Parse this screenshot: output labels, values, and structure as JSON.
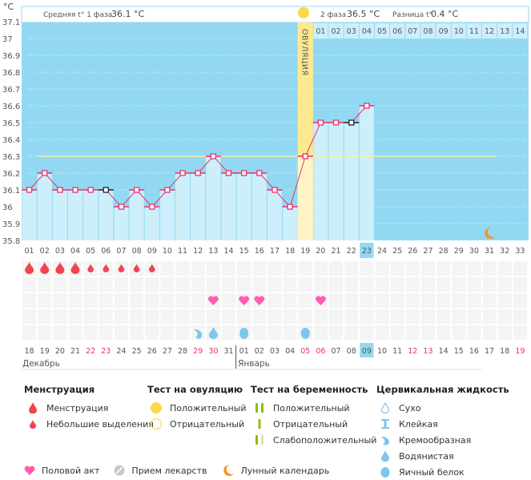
{
  "header": {
    "unit_label": "°C",
    "phase1_label": "Средняя t° 1 фаза",
    "phase1_value": "36.1 °C",
    "phase2_label": "2 фаза",
    "phase2_value": "36.5 °C",
    "diff_label": "Разница t°",
    "diff_value": "0.4 °C",
    "ovulation_label": "ОВУЛЯЦИЯ"
  },
  "colors": {
    "plot_bg": "#92d8f2",
    "bar_fill": "#cdeefb",
    "ovulation": "#fde98f",
    "line": "#e8336b",
    "coverline": "#f5f0a0",
    "menses": "#f0444f",
    "heart": "#ff5db1",
    "fluid": "#7cc6ef",
    "moon": "#f39422",
    "ovul_test": "#fdd84a",
    "preg_test": "#8cbd16",
    "preg_test_weak": "#d7e8b3",
    "weekend": "#e8336b",
    "today_bg": "#92d8f2"
  },
  "chart_data": {
    "type": "line",
    "title": "",
    "xlabel": "Cycle day",
    "ylabel": "°C",
    "ylim": [
      35.8,
      37.1
    ],
    "yticks": [
      37.1,
      37,
      36.9,
      36.8,
      36.7,
      36.6,
      36.5,
      36.4,
      36.3,
      36.2,
      36.1,
      36,
      35.9,
      35.8
    ],
    "cycle_days": [
      "01",
      "02",
      "03",
      "04",
      "05",
      "06",
      "07",
      "08",
      "09",
      "10",
      "11",
      "12",
      "13",
      "14",
      "15",
      "16",
      "17",
      "18",
      "19",
      "20",
      "21",
      "22",
      "23",
      "24",
      "25",
      "26",
      "27",
      "28",
      "29",
      "30",
      "31",
      "32",
      "33"
    ],
    "temperatures": [
      36.1,
      36.2,
      36.1,
      36.1,
      36.1,
      36.1,
      36.0,
      36.1,
      36.0,
      36.1,
      36.2,
      36.2,
      36.3,
      36.2,
      36.2,
      36.2,
      36.1,
      36.0,
      36.3,
      36.5,
      36.5,
      36.5,
      36.6,
      null,
      null,
      null,
      null,
      null,
      null,
      null,
      null,
      null,
      null
    ],
    "excluded_points": [
      6,
      22
    ],
    "coverline": {
      "value": 36.3,
      "from_day": 2,
      "to_day": 32
    },
    "ovulation_day": 19,
    "today_day": 23,
    "phase2_days": [
      "01",
      "02",
      "03",
      "04",
      "05",
      "06",
      "07",
      "08",
      "09",
      "10",
      "11",
      "12",
      "13",
      "14"
    ],
    "phase2_start_day": 20,
    "moon_day": 31,
    "menstruation": [
      {
        "day": 1,
        "type": "heavy"
      },
      {
        "day": 2,
        "type": "heavy"
      },
      {
        "day": 3,
        "type": "heavy"
      },
      {
        "day": 4,
        "type": "heavy"
      },
      {
        "day": 5,
        "type": "light"
      },
      {
        "day": 6,
        "type": "light"
      },
      {
        "day": 7,
        "type": "light"
      },
      {
        "day": 8,
        "type": "light"
      },
      {
        "day": 9,
        "type": "light"
      }
    ],
    "intercourse_days": [
      13,
      15,
      16,
      20
    ],
    "cervical_fluid": [
      {
        "day": 12,
        "type": "creamy"
      },
      {
        "day": 13,
        "type": "watery"
      },
      {
        "day": 15,
        "type": "eggwhite"
      },
      {
        "day": 19,
        "type": "eggwhite"
      }
    ],
    "calendar_dates": [
      "18",
      "19",
      "20",
      "21",
      "22",
      "23",
      "24",
      "25",
      "26",
      "27",
      "28",
      "29",
      "30",
      "31",
      "01",
      "02",
      "03",
      "04",
      "05",
      "06",
      "07",
      "08",
      "09",
      "10",
      "11",
      "12",
      "13",
      "14",
      "15",
      "16",
      "17",
      "18",
      "19"
    ],
    "weekend_dates_index": [
      4,
      5,
      11,
      12,
      18,
      19,
      25,
      26,
      32
    ],
    "today_date_index": 22,
    "months": [
      {
        "label": "Декабрь",
        "start_index": 0
      },
      {
        "label": "Январь",
        "start_index": 14
      }
    ]
  },
  "legend": {
    "menstruation": {
      "title": "Менструация",
      "items": [
        "Менструация",
        "Небольшие выделения"
      ]
    },
    "ovulation_test": {
      "title": "Тест на овуляцию",
      "items": [
        "Положительный",
        "Отрицательный"
      ]
    },
    "pregnancy_test": {
      "title": "Тест на беременность",
      "items": [
        "Положительный",
        "Отрицательный",
        "Слабоположительный"
      ]
    },
    "cervical_fluid": {
      "title": "Цервикальная жидкость",
      "items": [
        "Сухо",
        "Клейкая",
        "Кремообразная",
        "Водянистая",
        "Яичный белок"
      ]
    },
    "bottom": [
      "Половой акт",
      "Прием лекарств",
      "Лунный календарь"
    ]
  }
}
